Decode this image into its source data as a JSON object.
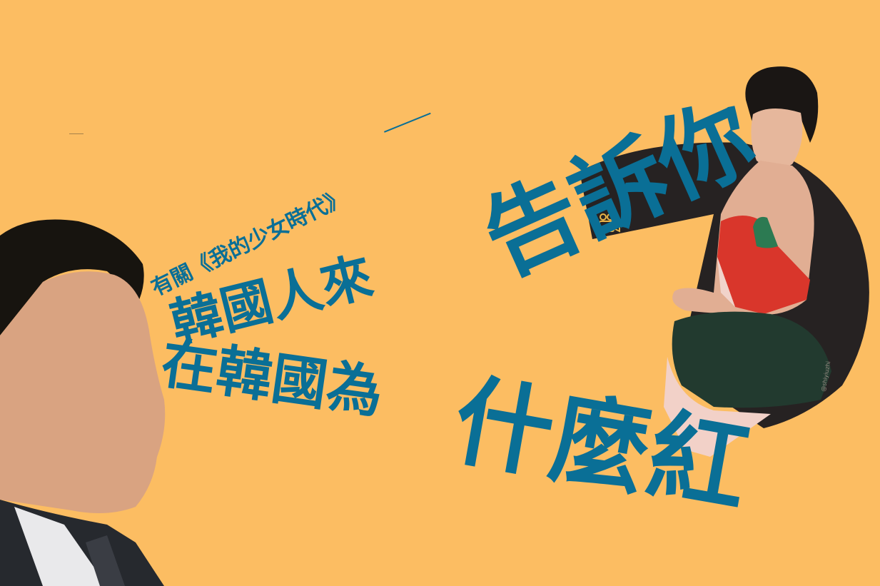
{
  "headline": {
    "subtitle": "有關《我的少女時代》",
    "line1": "韓國人來",
    "line2": "在韓國為",
    "line3": "告訴你",
    "line4": "什麼紅"
  },
  "photo_credit": "@shiyiuzhi",
  "colors": {
    "background": "#FCBD62",
    "text": "#0A6F96",
    "circle": "#262222"
  },
  "icons": {
    "camera": "film-camera-icon"
  }
}
